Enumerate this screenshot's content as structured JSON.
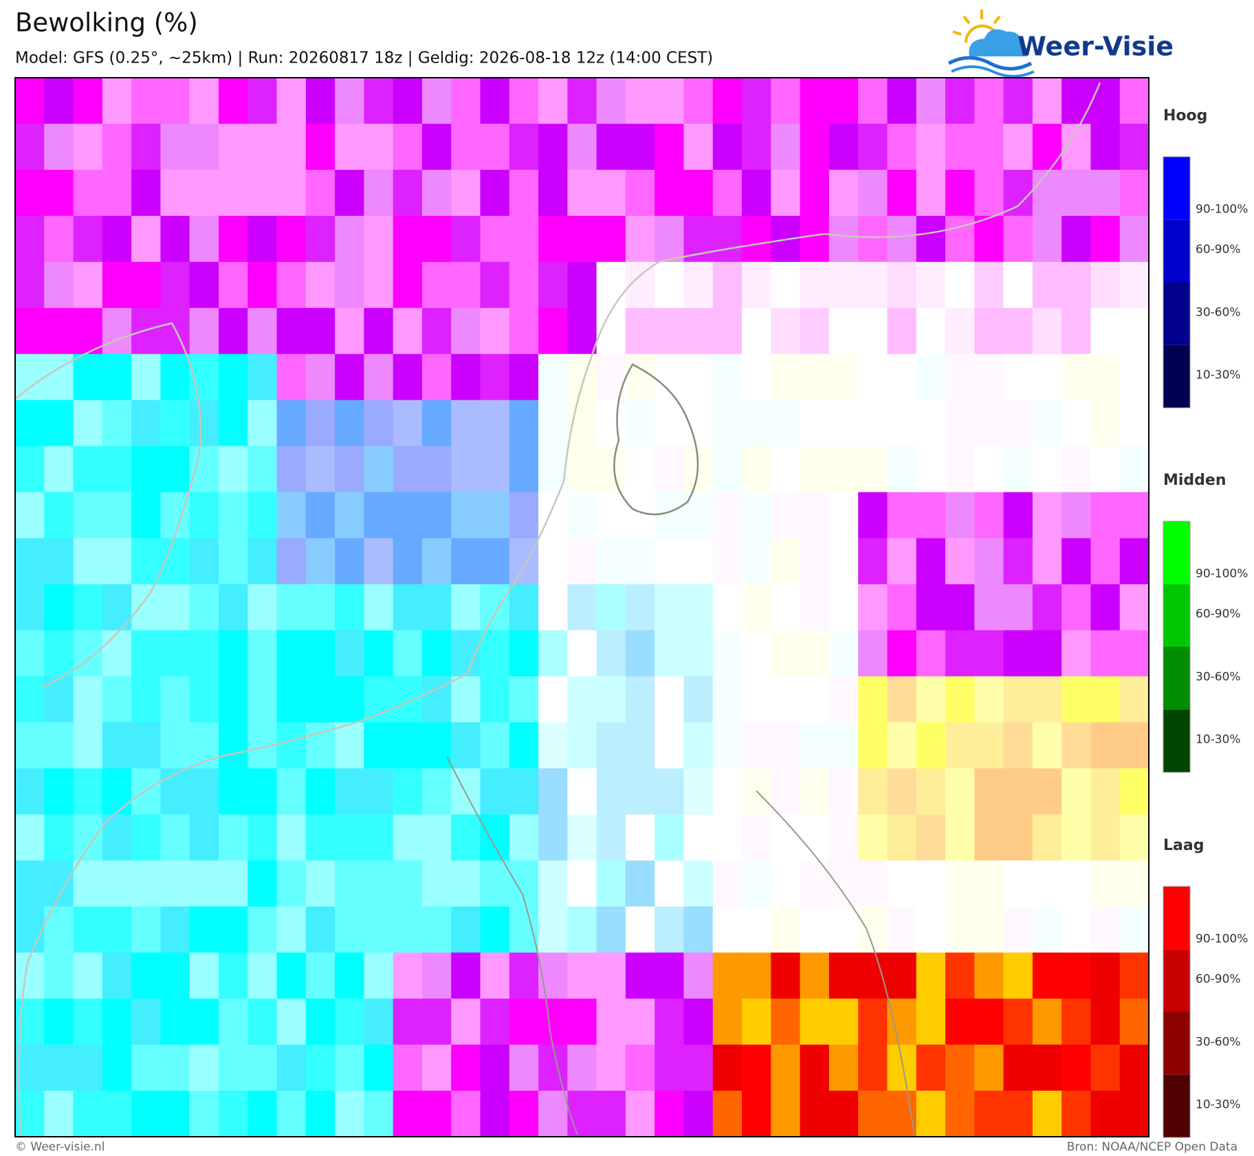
{
  "header": {
    "title": "Bewolking (%)",
    "subtitle": "Model: GFS (0.25°, ~25km)  |  Run: 20260817 18z  |  Geldig: 2026-08-18 12z (14:00 CEST)"
  },
  "logo": "Weer-Visie",
  "legend": [
    {
      "title": "Hoog",
      "labels": [
        "90-100%",
        "60-90%",
        "30-60%",
        "10-30%"
      ],
      "colors": [
        "#0000ff",
        "#0000cc",
        "#00008b",
        "#000050"
      ]
    },
    {
      "title": "Midden",
      "labels": [
        "90-100%",
        "60-90%",
        "30-60%",
        "10-30%"
      ],
      "colors": [
        "#00ff00",
        "#00c800",
        "#008c00",
        "#004600"
      ]
    },
    {
      "title": "Laag",
      "labels": [
        "90-100%",
        "60-90%",
        "30-60%",
        "10-30%"
      ],
      "colors": [
        "#ff0000",
        "#c80000",
        "#8c0000",
        "#500000"
      ]
    }
  ],
  "footer": {
    "left": "© Weer-visie.nl",
    "right": "Bron: NOAA/NCEP Open Data"
  }
}
